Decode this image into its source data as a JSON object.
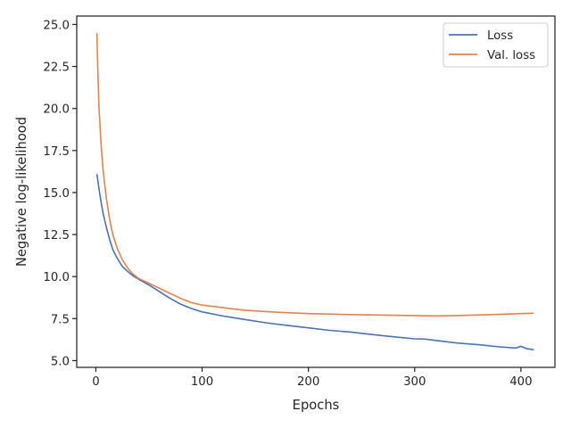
{
  "chart_data": {
    "type": "line",
    "xlabel": "Epochs",
    "ylabel": "Negative log-likelihood",
    "xlim": [
      -18,
      432
    ],
    "ylim": [
      4.6,
      25.5
    ],
    "xticks": [
      0,
      100,
      200,
      300,
      400
    ],
    "xtick_labels": [
      "0",
      "100",
      "200",
      "300",
      "400"
    ],
    "yticks": [
      5.0,
      7.5,
      10.0,
      12.5,
      15.0,
      17.5,
      20.0,
      22.5,
      25.0
    ],
    "ytick_labels": [
      "5.0",
      "7.5",
      "10.0",
      "12.5",
      "15.0",
      "17.5",
      "20.0",
      "22.5",
      "25.0"
    ],
    "grid": false,
    "legend_position": "top-right",
    "series": [
      {
        "name": "Loss",
        "color": "#4c72b0",
        "points": [
          [
            1,
            16.1
          ],
          [
            3,
            15.2
          ],
          [
            5,
            14.4
          ],
          [
            7,
            13.7
          ],
          [
            10,
            12.9
          ],
          [
            13,
            12.2
          ],
          [
            16,
            11.6
          ],
          [
            20,
            11.1
          ],
          [
            25,
            10.6
          ],
          [
            30,
            10.3
          ],
          [
            35,
            10.05
          ],
          [
            40,
            9.85
          ],
          [
            50,
            9.5
          ],
          [
            60,
            9.1
          ],
          [
            70,
            8.7
          ],
          [
            80,
            8.35
          ],
          [
            90,
            8.1
          ],
          [
            100,
            7.9
          ],
          [
            120,
            7.65
          ],
          [
            140,
            7.45
          ],
          [
            160,
            7.25
          ],
          [
            180,
            7.1
          ],
          [
            200,
            6.95
          ],
          [
            220,
            6.8
          ],
          [
            240,
            6.7
          ],
          [
            260,
            6.55
          ],
          [
            280,
            6.42
          ],
          [
            300,
            6.3
          ],
          [
            310,
            6.28
          ],
          [
            320,
            6.2
          ],
          [
            340,
            6.05
          ],
          [
            360,
            5.95
          ],
          [
            380,
            5.82
          ],
          [
            395,
            5.75
          ],
          [
            400,
            5.85
          ],
          [
            405,
            5.72
          ],
          [
            412,
            5.65
          ]
        ]
      },
      {
        "name": "Val. loss",
        "color": "#dd8452",
        "points": [
          [
            1,
            24.5
          ],
          [
            2,
            22.0
          ],
          [
            3,
            20.0
          ],
          [
            5,
            17.8
          ],
          [
            7,
            16.2
          ],
          [
            10,
            14.6
          ],
          [
            13,
            13.4
          ],
          [
            16,
            12.5
          ],
          [
            20,
            11.7
          ],
          [
            25,
            11.0
          ],
          [
            30,
            10.5
          ],
          [
            35,
            10.15
          ],
          [
            40,
            9.9
          ],
          [
            50,
            9.6
          ],
          [
            60,
            9.3
          ],
          [
            70,
            9.0
          ],
          [
            80,
            8.7
          ],
          [
            90,
            8.45
          ],
          [
            100,
            8.3
          ],
          [
            120,
            8.15
          ],
          [
            140,
            8.0
          ],
          [
            160,
            7.92
          ],
          [
            180,
            7.85
          ],
          [
            200,
            7.8
          ],
          [
            220,
            7.77
          ],
          [
            240,
            7.74
          ],
          [
            260,
            7.72
          ],
          [
            280,
            7.7
          ],
          [
            300,
            7.68
          ],
          [
            320,
            7.66
          ],
          [
            340,
            7.68
          ],
          [
            360,
            7.72
          ],
          [
            380,
            7.75
          ],
          [
            400,
            7.8
          ],
          [
            412,
            7.82
          ]
        ]
      }
    ]
  }
}
